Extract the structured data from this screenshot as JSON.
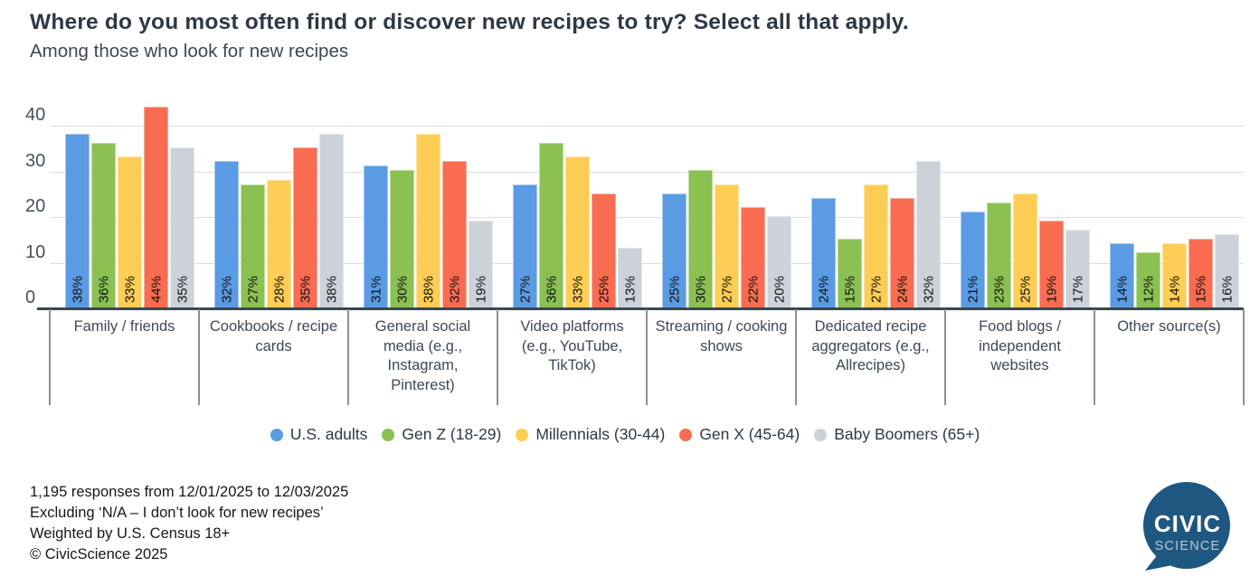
{
  "header": {
    "title": "Where do you most often find or discover new recipes to try? Select all that apply.",
    "subtitle": "Among those who look for new recipes"
  },
  "chart_data": {
    "type": "bar",
    "categories": [
      "Family / friends",
      "Cookbooks / recipe cards",
      "General social media (e.g., Instagram, Pinterest)",
      "Video platforms (e.g., YouTube, TikTok)",
      "Streaming / cooking shows",
      "Dedicated recipe aggregators (e.g., Allrecipes)",
      "Food blogs / independent websites",
      "Other source(s)"
    ],
    "series": [
      {
        "name": "U.S. adults",
        "color": "#5B9BE4",
        "values": [
          38,
          32,
          31,
          27,
          25,
          24,
          21,
          14
        ]
      },
      {
        "name": "Gen Z (18-29)",
        "color": "#8BC053",
        "values": [
          36,
          27,
          30,
          36,
          30,
          15,
          23,
          12
        ]
      },
      {
        "name": "Millennials (30-44)",
        "color": "#FDCD55",
        "values": [
          33,
          28,
          38,
          33,
          27,
          27,
          25,
          14
        ]
      },
      {
        "name": "Gen X (45-64)",
        "color": "#FA6C51",
        "values": [
          44,
          35,
          32,
          25,
          22,
          24,
          19,
          15
        ]
      },
      {
        "name": "Baby Boomers (65+)",
        "color": "#CDD2DA",
        "values": [
          35,
          38,
          19,
          13,
          20,
          32,
          17,
          16
        ]
      }
    ],
    "value_suffix": "%",
    "y_ticks": [
      0,
      10,
      20,
      30,
      40
    ],
    "ylim": [
      0,
      44
    ],
    "grid": true,
    "legend_position": "bottom",
    "xlabel": "",
    "ylabel": ""
  },
  "footer": {
    "line1": "1,195 responses from 12/01/2025 to 12/03/2025",
    "line2": "Excluding ‘N/A – I don’t look for new recipes’",
    "line3": "Weighted by U.S. Census 18+",
    "line4": "© CivicScience 2025"
  },
  "logo": {
    "line1": "CIVIC",
    "line2": "SCIENCE",
    "color": "#1E577F"
  }
}
